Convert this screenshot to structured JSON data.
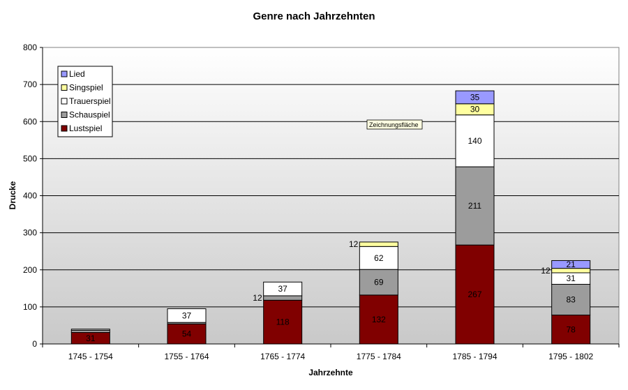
{
  "chart_data": {
    "type": "bar",
    "stacked": true,
    "title": "Genre nach Jahrzehnten",
    "xlabel": "Jahrzehnte",
    "ylabel": "Drucke",
    "ylim": [
      0,
      800
    ],
    "yticks": [
      "0",
      "100",
      "200",
      "300",
      "400",
      "500",
      "600",
      "700",
      "800"
    ],
    "grid": true,
    "legend_position": "top-left",
    "categories": [
      "1745 - 1754",
      "1755 - 1764",
      "1765 - 1774",
      "1775 - 1784",
      "1785 - 1794",
      "1795 - 1802"
    ],
    "series": [
      {
        "name": "Lustspiel",
        "color": "#800000",
        "values": [
          31,
          54,
          118,
          132,
          267,
          78
        ],
        "labels": [
          "31",
          "54",
          "118",
          "132",
          "267",
          "78"
        ]
      },
      {
        "name": "Schauspiel",
        "color": "#9c9c9c",
        "values": [
          6,
          4,
          12,
          69,
          211,
          83
        ],
        "labels": [
          "",
          "",
          "",
          "69",
          "211",
          "83"
        ]
      },
      {
        "name": "Trauerspiel",
        "color": "#ffffff",
        "values": [
          3,
          37,
          37,
          62,
          140,
          31
        ],
        "labels": [
          "",
          "37",
          "37",
          "62",
          "140",
          "31"
        ]
      },
      {
        "name": "Singspiel",
        "color": "#ffffa0",
        "values": [
          0,
          0,
          0,
          12,
          30,
          12
        ],
        "labels": [
          "",
          "",
          "",
          "12",
          "30",
          "12"
        ]
      },
      {
        "name": "Lied",
        "color": "#9999ff",
        "values": [
          0,
          0,
          0,
          0,
          35,
          21
        ],
        "labels": [
          "",
          "",
          "",
          "",
          "35",
          "21"
        ]
      }
    ],
    "outside_labels": [
      {
        "category": 2,
        "text": "12"
      },
      {
        "category": 3,
        "text": "12"
      },
      {
        "category": 5,
        "text": "12"
      }
    ],
    "plot_area_tooltip": "Zeichnungsfläche"
  }
}
